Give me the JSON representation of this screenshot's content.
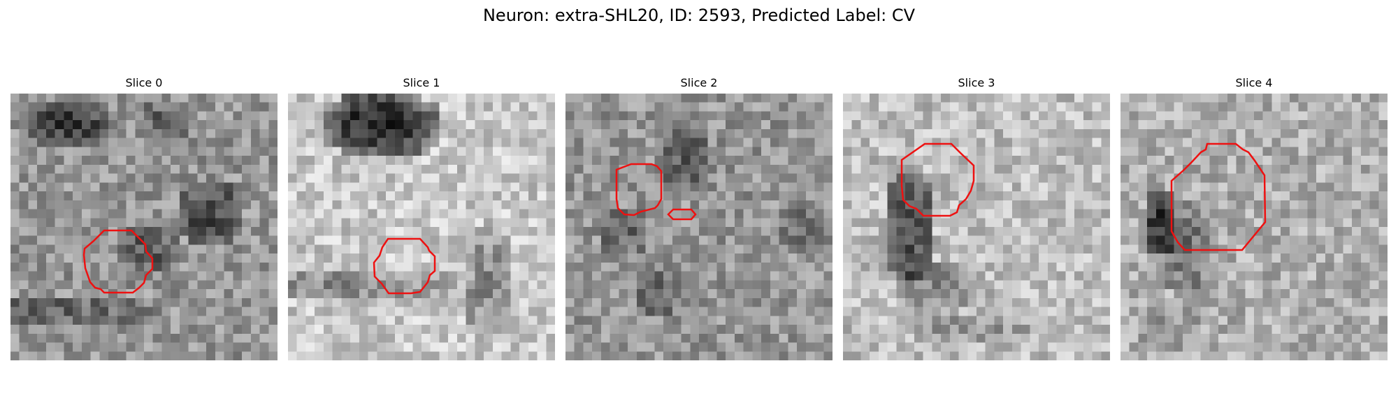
{
  "figure": {
    "title": "Neuron: extra-SHL20, ID: 2593, Predicted Label: CV"
  },
  "panels": [
    {
      "title": "Slice 0"
    },
    {
      "title": "Slice 1"
    },
    {
      "title": "Slice 2"
    },
    {
      "title": "Slice 3"
    },
    {
      "title": "Slice 4"
    }
  ],
  "colors": {
    "contour": "#ee1111",
    "background": "#ffffff",
    "colormap": "grayscale"
  }
}
